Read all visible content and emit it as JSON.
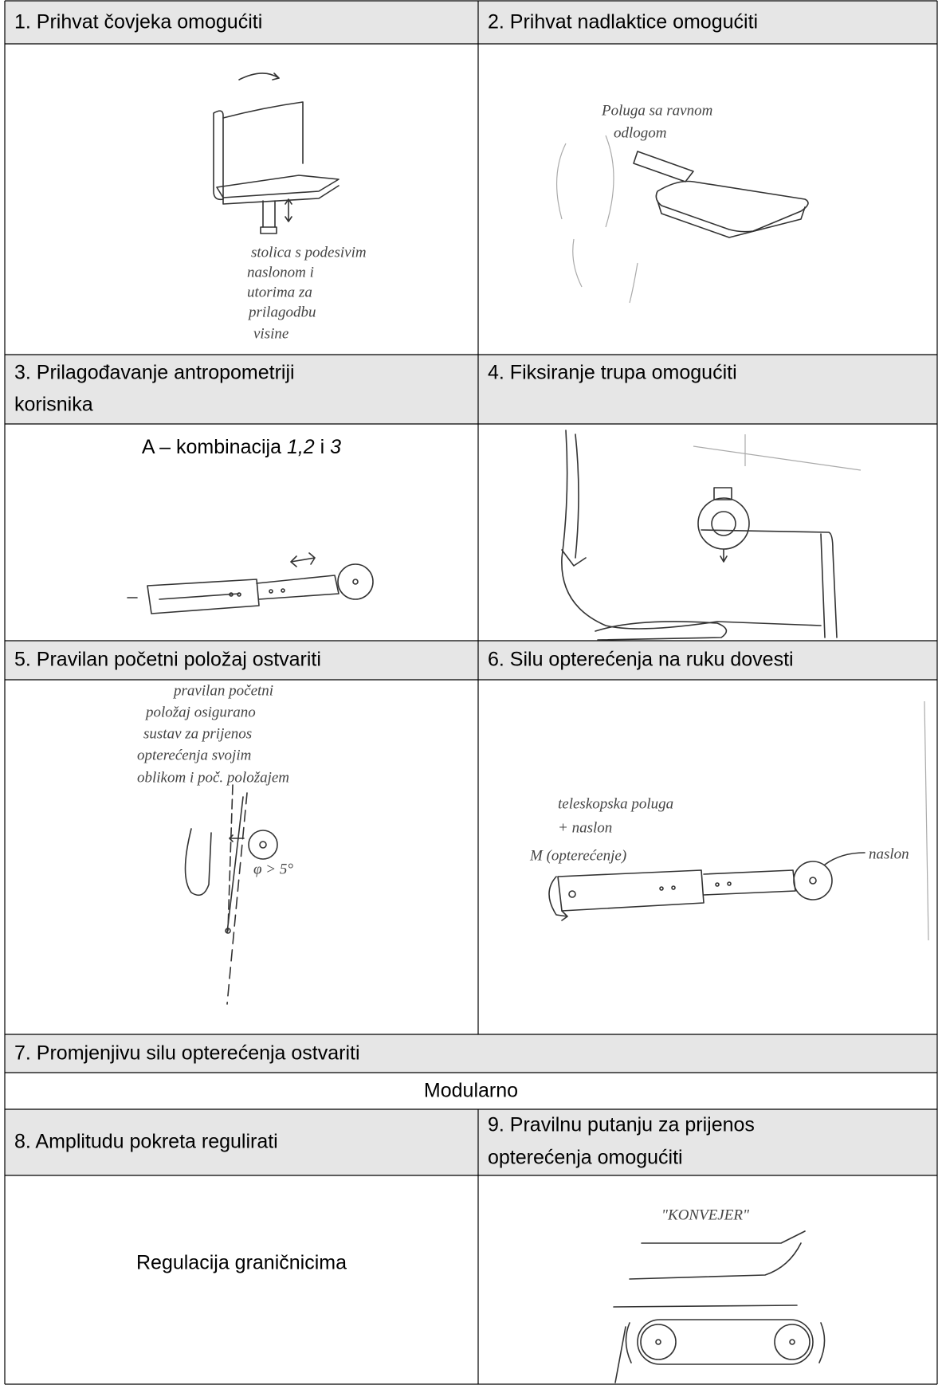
{
  "cells": [
    {
      "title": [
        "1. Prihvat čovjeka omogućiti"
      ],
      "notes": [
        "stolica s podesivim",
        "naslonom i",
        "utorima za",
        "prilagodbu",
        "visine"
      ]
    },
    {
      "title": [
        "2. Prihvat nadlaktice omogućiti"
      ],
      "notes": [
        "Poluga sa ravnom",
        "odlogom"
      ]
    },
    {
      "title": [
        "3. Prilagođavanje antropometriji",
        "korisnika"
      ],
      "text_parts": [
        "A – kombinacija ",
        "1,2",
        " i ",
        "3"
      ]
    },
    {
      "title": [
        "4. Fiksiranje trupa omogućiti"
      ]
    },
    {
      "title": [
        "5. Pravilan početni položaj ostvariti"
      ],
      "notes": [
        "pravilan početni",
        "položaj osigurano",
        "sustav za prijenos",
        "opterećenja svojim",
        "oblikom i poč. položajem"
      ],
      "angle_label": "φ > 5°"
    },
    {
      "title": [
        "6. Silu opterećenja na ruku dovesti"
      ],
      "notes": [
        "teleskopska poluga",
        "+ naslon"
      ],
      "moment_label": "M (opterećenje)",
      "support_label": "naslon"
    },
    {
      "title": [
        "7. Promjenjivu silu opterećenja ostvariti"
      ]
    },
    {
      "title": [
        "Modularno"
      ]
    },
    {
      "title": [
        "8. Amplitudu pokreta regulirati"
      ],
      "text": "Regulacija graničnicima"
    },
    {
      "title": [
        "9. Pravilnu putanju za prijenos",
        "opterećenja omogućiti"
      ],
      "notes": [
        "\"KONVEJER\""
      ]
    }
  ]
}
